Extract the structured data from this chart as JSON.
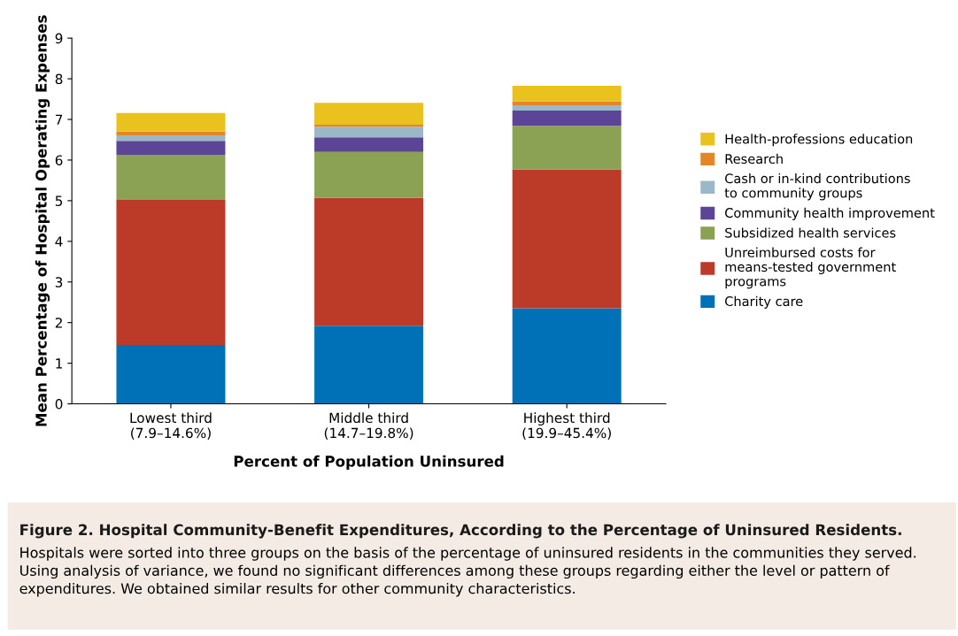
{
  "chart_data": {
    "type": "bar",
    "stacked": true,
    "title": "Figure 2. Hospital Community-Benefit Expenditures, According to the Percentage of Uninsured Residents.",
    "xlabel": "Percent of Population Uninsured",
    "ylabel": "Mean Percentage of Hospital Operating Expenses",
    "categories": [
      "Lowest third\n(7.9–14.6%)",
      "Middle third\n(14.7–19.8%)",
      "Highest third\n(19.9–45.4%)"
    ],
    "series": [
      {
        "name": "Charity care",
        "color": "#0071b6",
        "values": [
          1.45,
          1.92,
          2.35
        ]
      },
      {
        "name": "Unreimbursed costs for\nmeans-tested government\nprograms",
        "color": "#bc3b28",
        "values": [
          3.57,
          3.15,
          3.42
        ]
      },
      {
        "name": "Subsidized health services",
        "color": "#8ba153",
        "values": [
          1.11,
          1.13,
          1.07
        ]
      },
      {
        "name": "Community health improvement",
        "color": "#5c4596",
        "values": [
          0.34,
          0.36,
          0.38
        ]
      },
      {
        "name": "Cash or in-kind contributions\nto community groups",
        "color": "#9ab8c8",
        "values": [
          0.14,
          0.26,
          0.13
        ]
      },
      {
        "name": "Research",
        "color": "#e2862a",
        "values": [
          0.09,
          0.05,
          0.09
        ]
      },
      {
        "name": "Health-professions education",
        "color": "#e9c21e",
        "values": [
          0.46,
          0.54,
          0.39
        ]
      }
    ],
    "ylim": [
      0,
      9
    ],
    "yticks": [
      0,
      1,
      2,
      3,
      4,
      5,
      6,
      7,
      8,
      9
    ],
    "grid": false,
    "legend": "right",
    "annotations": [
      "Hospitals were sorted into three groups on the basis of the percentage of uninsured residents in the communities they served. Using analysis of variance, we found no significant differences among these groups regarding either the level or pattern of expenditures. We obtained similar results for other community characteristics."
    ]
  }
}
